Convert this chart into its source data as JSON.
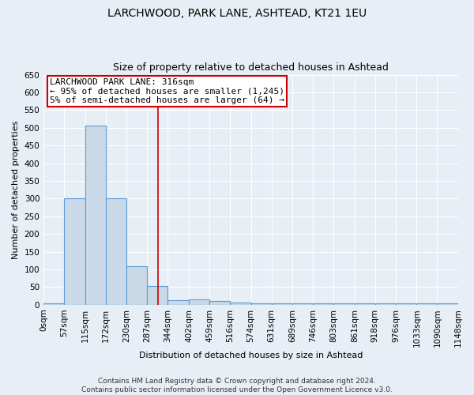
{
  "title": "LARCHWOOD, PARK LANE, ASHTEAD, KT21 1EU",
  "subtitle": "Size of property relative to detached houses in Ashtead",
  "xlabel": "Distribution of detached houses by size in Ashtead",
  "ylabel": "Number of detached properties",
  "bin_labels": [
    "0sqm",
    "57sqm",
    "115sqm",
    "172sqm",
    "230sqm",
    "287sqm",
    "344sqm",
    "402sqm",
    "459sqm",
    "516sqm",
    "574sqm",
    "631sqm",
    "689sqm",
    "746sqm",
    "803sqm",
    "861sqm",
    "918sqm",
    "976sqm",
    "1033sqm",
    "1090sqm",
    "1148sqm"
  ],
  "bin_edges": [
    0,
    57,
    115,
    172,
    230,
    287,
    344,
    402,
    459,
    516,
    574,
    631,
    689,
    746,
    803,
    861,
    918,
    976,
    1033,
    1090,
    1148
  ],
  "bar_heights": [
    5,
    300,
    507,
    300,
    108,
    53,
    14,
    15,
    10,
    7,
    5,
    5,
    5,
    5,
    5,
    5,
    5,
    5,
    5,
    5
  ],
  "bar_color": "#c9d9e8",
  "bar_edge_color": "#5b9bd5",
  "ylim": [
    0,
    650
  ],
  "yticks": [
    0,
    50,
    100,
    150,
    200,
    250,
    300,
    350,
    400,
    450,
    500,
    550,
    600,
    650
  ],
  "red_line_x": 316,
  "annotation_text_line1": "LARCHWOOD PARK LANE: 316sqm",
  "annotation_text_line2": "← 95% of detached houses are smaller (1,245)",
  "annotation_text_line3": "5% of semi-detached houses are larger (64) →",
  "footnote1": "Contains HM Land Registry data © Crown copyright and database right 2024.",
  "footnote2": "Contains public sector information licensed under the Open Government Licence v3.0.",
  "background_color": "#e8eef5",
  "grid_color": "#ffffff",
  "title_fontsize": 10,
  "subtitle_fontsize": 9,
  "annotation_box_color": "#cc0000",
  "annotation_box_fill": "#ffffff",
  "footnote_fontsize": 6.5,
  "axis_label_fontsize": 8,
  "tick_fontsize": 7.5,
  "annotation_fontsize": 8
}
